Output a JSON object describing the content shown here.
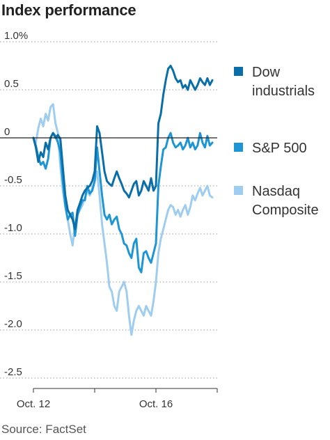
{
  "title": "Index performance",
  "source": "Source: FactSet",
  "chart_data": {
    "type": "line",
    "title": "Index performance",
    "xlabel": "",
    "ylabel": "",
    "ylim": [
      -2.5,
      1.0
    ],
    "yticks": [
      1.0,
      0.5,
      0,
      -0.5,
      -1.0,
      -1.5,
      -2.0,
      -2.5
    ],
    "ytick_labels": [
      "1.0%",
      "0.5",
      "0",
      "-0.5",
      "-1.0",
      "-1.5",
      "-2.0",
      "-2.5"
    ],
    "xtick_labels": [
      "Oct. 12",
      "Oct. 16"
    ],
    "xlim": [
      "Oct. 12",
      "Oct. 18"
    ],
    "x_units": "trading sessions (Oct. 12 open = 0)",
    "grid": false,
    "legend_position": "right",
    "series": [
      {
        "name": "Dow industrials",
        "color": "#0a6ea8",
        "points": [
          [
            0,
            0.0
          ],
          [
            0.04,
            -0.1
          ],
          [
            0.08,
            -0.25
          ],
          [
            0.12,
            -0.15
          ],
          [
            0.16,
            -0.2
          ],
          [
            0.2,
            -0.05
          ],
          [
            0.24,
            -0.12
          ],
          [
            0.28,
            0.0
          ],
          [
            0.32,
            0.05
          ],
          [
            0.36,
            0.0
          ],
          [
            0.4,
            0.03
          ],
          [
            0.44,
            -0.01
          ],
          [
            0.48,
            -0.3
          ],
          [
            0.52,
            -0.6
          ],
          [
            0.56,
            -0.75
          ],
          [
            0.6,
            -0.8
          ],
          [
            0.64,
            -0.85
          ],
          [
            0.68,
            -0.95
          ],
          [
            0.72,
            -0.75
          ],
          [
            0.76,
            -0.68
          ],
          [
            0.8,
            -0.6
          ],
          [
            0.84,
            -0.55
          ],
          [
            0.88,
            -0.52
          ],
          [
            0.92,
            -0.5
          ],
          [
            0.96,
            -0.45
          ],
          [
            1.0,
            -0.35
          ],
          [
            1.04,
            0.12
          ],
          [
            1.08,
            0.05
          ],
          [
            1.12,
            -0.15
          ],
          [
            1.16,
            -0.35
          ],
          [
            1.2,
            -0.45
          ],
          [
            1.24,
            -0.48
          ],
          [
            1.28,
            -0.5
          ],
          [
            1.32,
            -0.42
          ],
          [
            1.36,
            -0.35
          ],
          [
            1.4,
            -0.42
          ],
          [
            1.44,
            -0.48
          ],
          [
            1.48,
            -0.55
          ],
          [
            1.52,
            -0.58
          ],
          [
            1.56,
            -0.62
          ],
          [
            1.6,
            -0.55
          ],
          [
            1.64,
            -0.48
          ],
          [
            1.68,
            -0.45
          ],
          [
            1.72,
            -0.6
          ],
          [
            1.76,
            -0.55
          ],
          [
            1.8,
            -0.45
          ],
          [
            1.84,
            -0.5
          ],
          [
            1.88,
            -0.55
          ],
          [
            1.92,
            -0.42
          ],
          [
            1.96,
            -0.55
          ],
          [
            2.0,
            -0.5
          ],
          [
            2.04,
            0.15
          ],
          [
            2.08,
            0.25
          ],
          [
            2.12,
            0.45
          ],
          [
            2.16,
            0.6
          ],
          [
            2.2,
            0.72
          ],
          [
            2.24,
            0.75
          ],
          [
            2.28,
            0.7
          ],
          [
            2.32,
            0.62
          ],
          [
            2.36,
            0.58
          ],
          [
            2.4,
            0.6
          ],
          [
            2.44,
            0.52
          ],
          [
            2.48,
            0.55
          ],
          [
            2.52,
            0.5
          ],
          [
            2.56,
            0.6
          ],
          [
            2.6,
            0.55
          ],
          [
            2.64,
            0.5
          ],
          [
            2.68,
            0.55
          ],
          [
            2.72,
            0.62
          ],
          [
            2.76,
            0.58
          ],
          [
            2.8,
            0.55
          ],
          [
            2.84,
            0.62
          ],
          [
            2.88,
            0.55
          ],
          [
            2.92,
            0.6
          ]
        ]
      },
      {
        "name": "S&P 500",
        "color": "#1e96d6",
        "points": [
          [
            0,
            0.0
          ],
          [
            0.04,
            -0.08
          ],
          [
            0.08,
            -0.2
          ],
          [
            0.12,
            -0.28
          ],
          [
            0.16,
            -0.25
          ],
          [
            0.2,
            -0.32
          ],
          [
            0.24,
            -0.22
          ],
          [
            0.28,
            0.0
          ],
          [
            0.32,
            0.05
          ],
          [
            0.36,
            0.02
          ],
          [
            0.4,
            -0.05
          ],
          [
            0.44,
            -0.15
          ],
          [
            0.48,
            -0.45
          ],
          [
            0.52,
            -0.7
          ],
          [
            0.56,
            -0.85
          ],
          [
            0.6,
            -0.8
          ],
          [
            0.64,
            -0.78
          ],
          [
            0.68,
            -1.02
          ],
          [
            0.72,
            -0.8
          ],
          [
            0.76,
            -0.72
          ],
          [
            0.8,
            -0.65
          ],
          [
            0.84,
            -0.65
          ],
          [
            0.88,
            -0.5
          ],
          [
            0.92,
            -0.58
          ],
          [
            0.96,
            -0.55
          ],
          [
            1.0,
            -0.45
          ],
          [
            1.04,
            -0.1
          ],
          [
            1.08,
            -0.35
          ],
          [
            1.12,
            -0.6
          ],
          [
            1.16,
            -0.8
          ],
          [
            1.2,
            -0.85
          ],
          [
            1.24,
            -0.8
          ],
          [
            1.28,
            -0.9
          ],
          [
            1.32,
            -0.85
          ],
          [
            1.36,
            -0.82
          ],
          [
            1.4,
            -0.95
          ],
          [
            1.44,
            -1.0
          ],
          [
            1.48,
            -1.1
          ],
          [
            1.52,
            -1.12
          ],
          [
            1.56,
            -1.2
          ],
          [
            1.6,
            -1.25
          ],
          [
            1.64,
            -1.1
          ],
          [
            1.68,
            -1.05
          ],
          [
            1.72,
            -1.35
          ],
          [
            1.76,
            -1.4
          ],
          [
            1.8,
            -1.2
          ],
          [
            1.84,
            -1.18
          ],
          [
            1.88,
            -1.25
          ],
          [
            1.92,
            -1.3
          ],
          [
            1.96,
            -1.2
          ],
          [
            2.0,
            -1.1
          ],
          [
            2.04,
            -0.5
          ],
          [
            2.08,
            -0.3
          ],
          [
            2.12,
            -0.12
          ],
          [
            2.16,
            -0.1
          ],
          [
            2.2,
            0.0
          ],
          [
            2.24,
            0.05
          ],
          [
            2.28,
            -0.05
          ],
          [
            2.32,
            -0.1
          ],
          [
            2.36,
            -0.08
          ],
          [
            2.4,
            -0.05
          ],
          [
            2.44,
            -0.12
          ],
          [
            2.48,
            -0.08
          ],
          [
            2.52,
            0.0
          ],
          [
            2.56,
            -0.1
          ],
          [
            2.6,
            -0.05
          ],
          [
            2.64,
            -0.12
          ],
          [
            2.68,
            -0.08
          ],
          [
            2.72,
            0.05
          ],
          [
            2.76,
            -0.05
          ],
          [
            2.8,
            -0.1
          ],
          [
            2.84,
            0.02
          ],
          [
            2.88,
            -0.08
          ],
          [
            2.92,
            -0.05
          ]
        ]
      },
      {
        "name": "Nasdaq Composite",
        "color": "#9fcdef",
        "points": [
          [
            0,
            0.0
          ],
          [
            0.04,
            -0.05
          ],
          [
            0.08,
            0.1
          ],
          [
            0.12,
            0.2
          ],
          [
            0.16,
            0.12
          ],
          [
            0.2,
            0.25
          ],
          [
            0.24,
            0.18
          ],
          [
            0.28,
            0.32
          ],
          [
            0.32,
            0.35
          ],
          [
            0.36,
            0.15
          ],
          [
            0.4,
            0.05
          ],
          [
            0.44,
            -0.3
          ],
          [
            0.48,
            -0.55
          ],
          [
            0.52,
            -0.72
          ],
          [
            0.56,
            -0.85
          ],
          [
            0.6,
            -1.0
          ],
          [
            0.64,
            -1.12
          ],
          [
            0.68,
            -0.9
          ],
          [
            0.72,
            -0.8
          ],
          [
            0.76,
            -0.75
          ],
          [
            0.8,
            -0.7
          ],
          [
            0.84,
            -0.62
          ],
          [
            0.88,
            -0.55
          ],
          [
            0.92,
            -0.6
          ],
          [
            0.96,
            -0.52
          ],
          [
            1.0,
            -0.45
          ],
          [
            1.04,
            -0.35
          ],
          [
            1.08,
            -0.6
          ],
          [
            1.12,
            -0.9
          ],
          [
            1.16,
            -1.1
          ],
          [
            1.2,
            -1.3
          ],
          [
            1.24,
            -1.55
          ],
          [
            1.28,
            -1.6
          ],
          [
            1.32,
            -1.75
          ],
          [
            1.36,
            -1.8
          ],
          [
            1.4,
            -1.6
          ],
          [
            1.44,
            -1.55
          ],
          [
            1.48,
            -1.5
          ],
          [
            1.52,
            -1.6
          ],
          [
            1.56,
            -1.85
          ],
          [
            1.6,
            -2.05
          ],
          [
            1.64,
            -1.9
          ],
          [
            1.68,
            -1.8
          ],
          [
            1.72,
            -1.75
          ],
          [
            1.76,
            -1.8
          ],
          [
            1.8,
            -1.85
          ],
          [
            1.84,
            -1.75
          ],
          [
            1.88,
            -1.8
          ],
          [
            1.92,
            -1.85
          ],
          [
            1.96,
            -1.7
          ],
          [
            2.0,
            -1.5
          ],
          [
            2.04,
            -1.2
          ],
          [
            2.08,
            -1.05
          ],
          [
            2.12,
            -0.95
          ],
          [
            2.16,
            -0.85
          ],
          [
            2.2,
            -0.75
          ],
          [
            2.24,
            -0.7
          ],
          [
            2.28,
            -0.72
          ],
          [
            2.32,
            -0.8
          ],
          [
            2.36,
            -0.75
          ],
          [
            2.4,
            -0.82
          ],
          [
            2.44,
            -0.75
          ],
          [
            2.48,
            -0.7
          ],
          [
            2.52,
            -0.8
          ],
          [
            2.56,
            -0.72
          ],
          [
            2.6,
            -0.6
          ],
          [
            2.64,
            -0.65
          ],
          [
            2.68,
            -0.58
          ],
          [
            2.72,
            -0.52
          ],
          [
            2.76,
            -0.6
          ],
          [
            2.8,
            -0.55
          ],
          [
            2.84,
            -0.5
          ],
          [
            2.88,
            -0.6
          ],
          [
            2.92,
            -0.62
          ]
        ]
      }
    ]
  }
}
